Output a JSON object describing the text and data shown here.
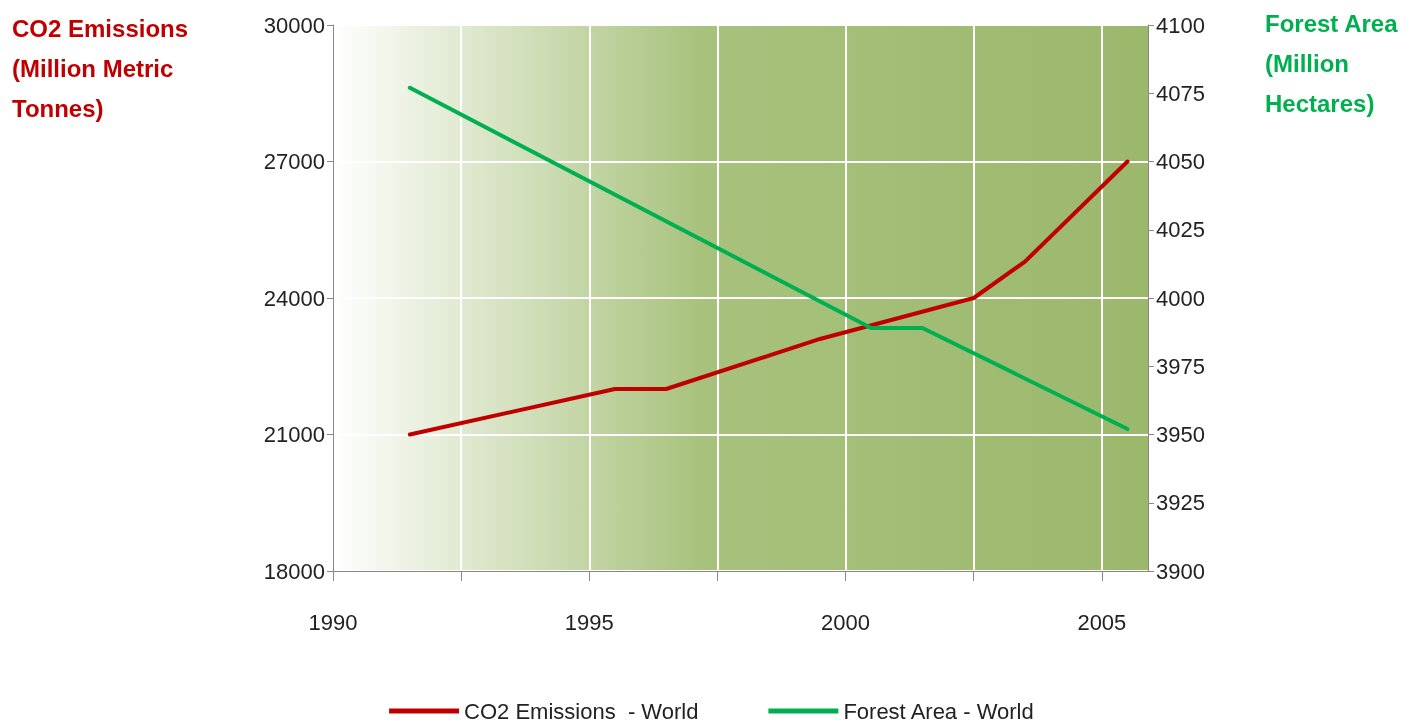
{
  "chart_data": {
    "type": "line",
    "ylabel": "CO2 Emissions (Million Metric Tonnes)",
    "y2label": "Forest Area (Million Hectares)",
    "xlim": [
      1990,
      2005.9
    ],
    "xticks": [
      1990,
      {
        "value": 1992.5,
        "label": null
      },
      1995,
      {
        "value": 1997.5,
        "label": null
      },
      2000,
      {
        "value": 2002.5,
        "label": null
      },
      2005
    ],
    "ylim": [
      18000,
      30000
    ],
    "yticks": [
      18000,
      21000,
      24000,
      27000,
      30000
    ],
    "y2lim": [
      3900,
      4100
    ],
    "y2ticks": [
      3900,
      3925,
      3950,
      3975,
      4000,
      4025,
      4050,
      4075,
      4100
    ],
    "grid": true,
    "legend": "bottom",
    "marker": "none",
    "line_style": "solid",
    "series": [
      {
        "name": "CO2 Emissions  - World",
        "color": "#c00000",
        "x": [
          1991.5,
          1995.5,
          1996.5,
          1999.5,
          2002.5,
          2003.5,
          2005.5
        ],
        "values": [
          21000,
          22000,
          22000,
          23100,
          24000,
          24800,
          27000
        ]
      },
      {
        "name": "Forest Area - World",
        "color": "#00b050",
        "axis": "y2",
        "x": [
          1991.5,
          2000.5,
          2001.5,
          2005.5
        ],
        "values": [
          4077,
          3989,
          3989,
          3952
        ]
      }
    ]
  }
}
